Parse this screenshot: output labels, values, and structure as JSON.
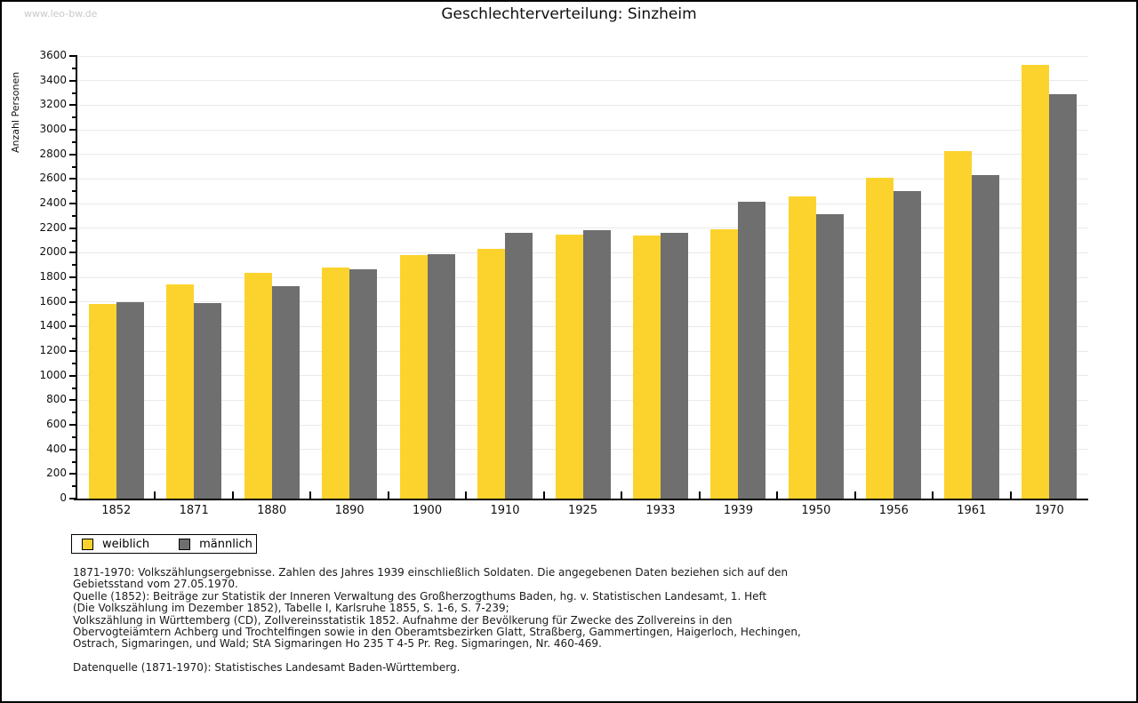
{
  "watermark": "www.leo-bw.de",
  "title": "Geschlechterverteilung: Sinzheim",
  "chart_data": {
    "type": "bar",
    "title": "Geschlechterverteilung: Sinzheim",
    "xlabel": "",
    "ylabel": "Anzahl Personen",
    "ylim": [
      0,
      3600
    ],
    "ytick_step": 200,
    "ytick_minor_step": 100,
    "grid": true,
    "legend_position": "bottom-left",
    "categories": [
      "1852",
      "1871",
      "1880",
      "1890",
      "1900",
      "1910",
      "1925",
      "1933",
      "1939",
      "1950",
      "1956",
      "1961",
      "1970"
    ],
    "series": [
      {
        "name": "weiblich",
        "color": "#fcd32d",
        "values": [
          1585,
          1741,
          1839,
          1883,
          1981,
          2033,
          2145,
          2137,
          2188,
          2457,
          2612,
          2829,
          3529
        ]
      },
      {
        "name": "männlich",
        "color": "#6f6f6f",
        "values": [
          1597,
          1591,
          1727,
          1867,
          1990,
          2158,
          2183,
          2162,
          2417,
          2314,
          2500,
          2629,
          3291
        ]
      }
    ]
  },
  "legend": {
    "items": [
      {
        "label": "weiblich",
        "color": "#fcd32d"
      },
      {
        "label": "männlich",
        "color": "#6f6f6f"
      }
    ]
  },
  "footer": {
    "lines": [
      "1871-1970: Volkszählungsergebnisse. Zahlen des Jahres 1939 einschließlich Soldaten. Die angegebenen Daten beziehen sich auf den",
      "Gebietsstand vom 27.05.1970.",
      "Quelle (1852): Beiträge zur Statistik der Inneren Verwaltung des Großherzogthums Baden, hg. v. Statistischen Landesamt, 1. Heft",
      "(Die Volkszählung im Dezember 1852), Tabelle I, Karlsruhe 1855, S. 1-6, S. 7-239;",
      "Volkszählung in Württemberg (CD), Zollvereinsstatistik 1852. Aufnahme der Bevölkerung für Zwecke des Zollvereins in den",
      "Obervogteiämtern Achberg und Trochtelfingen sowie in den Oberamtsbezirken Glatt, Straßberg, Gammertingen, Haigerloch, Hechingen,",
      "Ostrach, Sigmaringen, und Wald; StA Sigmaringen Ho 235 T 4-5 Pr. Reg. Sigmaringen, Nr. 460-469."
    ],
    "datasource": "Datenquelle (1871-1970): Statistisches Landesamt Baden-Württemberg."
  }
}
